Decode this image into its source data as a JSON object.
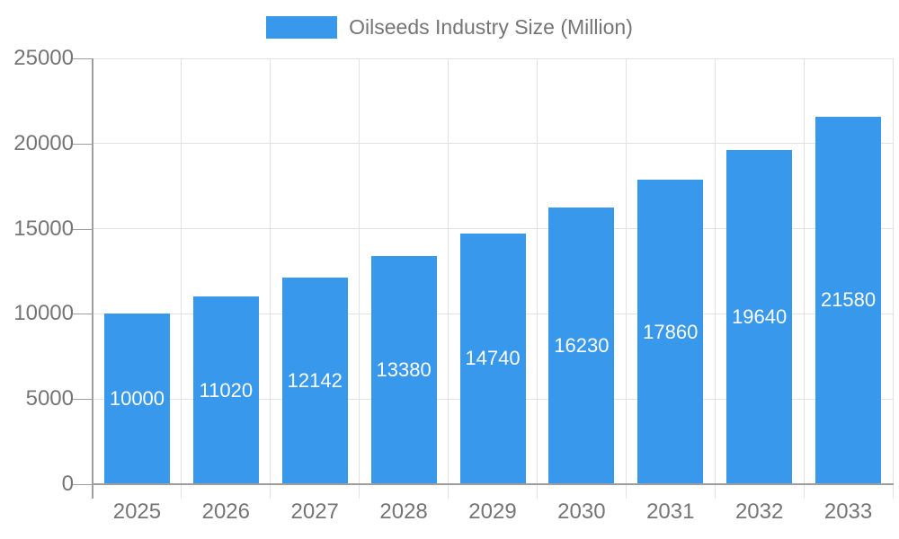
{
  "legend": {
    "label": "Oilseeds Industry Size (Million)"
  },
  "chart_data": {
    "type": "bar",
    "title": "Oilseeds Industry Size (Million)",
    "categories": [
      "2025",
      "2026",
      "2027",
      "2028",
      "2029",
      "2030",
      "2031",
      "2032",
      "2033"
    ],
    "series": [
      {
        "name": "Oilseeds Industry Size (Million)",
        "values": [
          10000,
          11020,
          12142,
          13380,
          14740,
          16230,
          17860,
          19640,
          21580
        ]
      }
    ],
    "bar_labels_visible": true,
    "xlabel": "",
    "ylabel": "",
    "ylim": [
      0,
      25000
    ],
    "yticks": [
      0,
      5000,
      10000,
      15000,
      20000,
      25000
    ],
    "grid": true,
    "legend_position": "top-center",
    "colors": {
      "bar": "#3898ec",
      "bar_label": "#ffffff",
      "grid": "#e2e2e2",
      "axis": "#9e9e9e",
      "text": "#757575",
      "background": "#ffffff"
    }
  }
}
